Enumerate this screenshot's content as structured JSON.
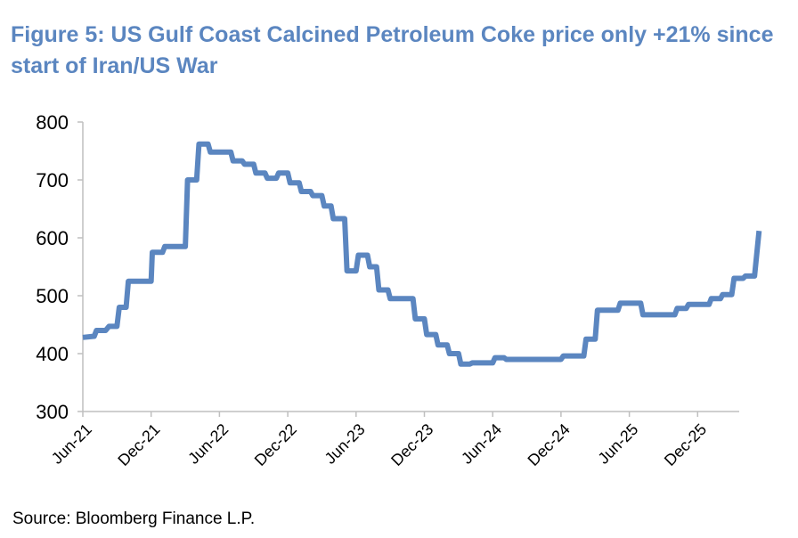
{
  "title": "Figure 5: US Gulf Coast Calcined Petroleum Coke price only +21% since start of Iran/US War",
  "source": "Source: Bloomberg Finance L.P.",
  "colors": {
    "title": "#5b86c0",
    "line": "#5b86c0",
    "axis": "#bfbfbf"
  },
  "chart_data": {
    "type": "line",
    "title": "",
    "xlabel": "",
    "ylabel": "",
    "ylim": [
      300,
      800
    ],
    "yticks": [
      300,
      400,
      500,
      600,
      700,
      800
    ],
    "xtick_labels": [
      "Jun-21",
      "Dec-21",
      "Jun-22",
      "Dec-22",
      "Jun-23",
      "Dec-23",
      "Jun-24",
      "Dec-24",
      "Jun-25",
      "Dec-25"
    ],
    "grid": false,
    "legend": "none",
    "x_unit": "months since Jun-21",
    "series": [
      {
        "points": [
          [
            0,
            428
          ],
          [
            1,
            430
          ],
          [
            1.2,
            440
          ],
          [
            2,
            440
          ],
          [
            2.3,
            447
          ],
          [
            3,
            447
          ],
          [
            3.2,
            480
          ],
          [
            3.8,
            480
          ],
          [
            4,
            525
          ],
          [
            6,
            525
          ],
          [
            6.1,
            575
          ],
          [
            7,
            575
          ],
          [
            7.2,
            585
          ],
          [
            9,
            585
          ],
          [
            9.2,
            700
          ],
          [
            10,
            700
          ],
          [
            10.2,
            762
          ],
          [
            11,
            762
          ],
          [
            11.2,
            748
          ],
          [
            13,
            748
          ],
          [
            13.2,
            733
          ],
          [
            14,
            733
          ],
          [
            14.2,
            727
          ],
          [
            15,
            727
          ],
          [
            15.2,
            712
          ],
          [
            16,
            712
          ],
          [
            16.2,
            703
          ],
          [
            17,
            703
          ],
          [
            17.2,
            712
          ],
          [
            18,
            712
          ],
          [
            18.2,
            695
          ],
          [
            19,
            695
          ],
          [
            19.2,
            680
          ],
          [
            20,
            680
          ],
          [
            20.2,
            673
          ],
          [
            21,
            673
          ],
          [
            21.2,
            655
          ],
          [
            21.8,
            655
          ],
          [
            22,
            633
          ],
          [
            23,
            633
          ],
          [
            23.2,
            543
          ],
          [
            24,
            543
          ],
          [
            24.2,
            570
          ],
          [
            25,
            570
          ],
          [
            25.2,
            550
          ],
          [
            25.8,
            550
          ],
          [
            26,
            510
          ],
          [
            26.8,
            510
          ],
          [
            27,
            495
          ],
          [
            29,
            495
          ],
          [
            29.2,
            460
          ],
          [
            30,
            460
          ],
          [
            30.2,
            433
          ],
          [
            31,
            433
          ],
          [
            31.2,
            415
          ],
          [
            32,
            415
          ],
          [
            32.2,
            400
          ],
          [
            33,
            400
          ],
          [
            33.2,
            382
          ],
          [
            34,
            382
          ],
          [
            34.2,
            384
          ],
          [
            36,
            384
          ],
          [
            36.2,
            393
          ],
          [
            37,
            393
          ],
          [
            37.2,
            390
          ],
          [
            42,
            390
          ],
          [
            42.2,
            396
          ],
          [
            44,
            396
          ],
          [
            44.2,
            425
          ],
          [
            45,
            425
          ],
          [
            45.2,
            475
          ],
          [
            47,
            475
          ],
          [
            47.2,
            487
          ],
          [
            49,
            487
          ],
          [
            49.2,
            467
          ],
          [
            52,
            467
          ],
          [
            52.2,
            478
          ],
          [
            53,
            478
          ],
          [
            53.2,
            485
          ],
          [
            55,
            485
          ],
          [
            55.2,
            495
          ],
          [
            56,
            495
          ],
          [
            56.2,
            502
          ],
          [
            57,
            502
          ],
          [
            57.2,
            530
          ],
          [
            58,
            530
          ],
          [
            58.2,
            534
          ],
          [
            59,
            534
          ],
          [
            59.4,
            612
          ]
        ]
      }
    ]
  }
}
